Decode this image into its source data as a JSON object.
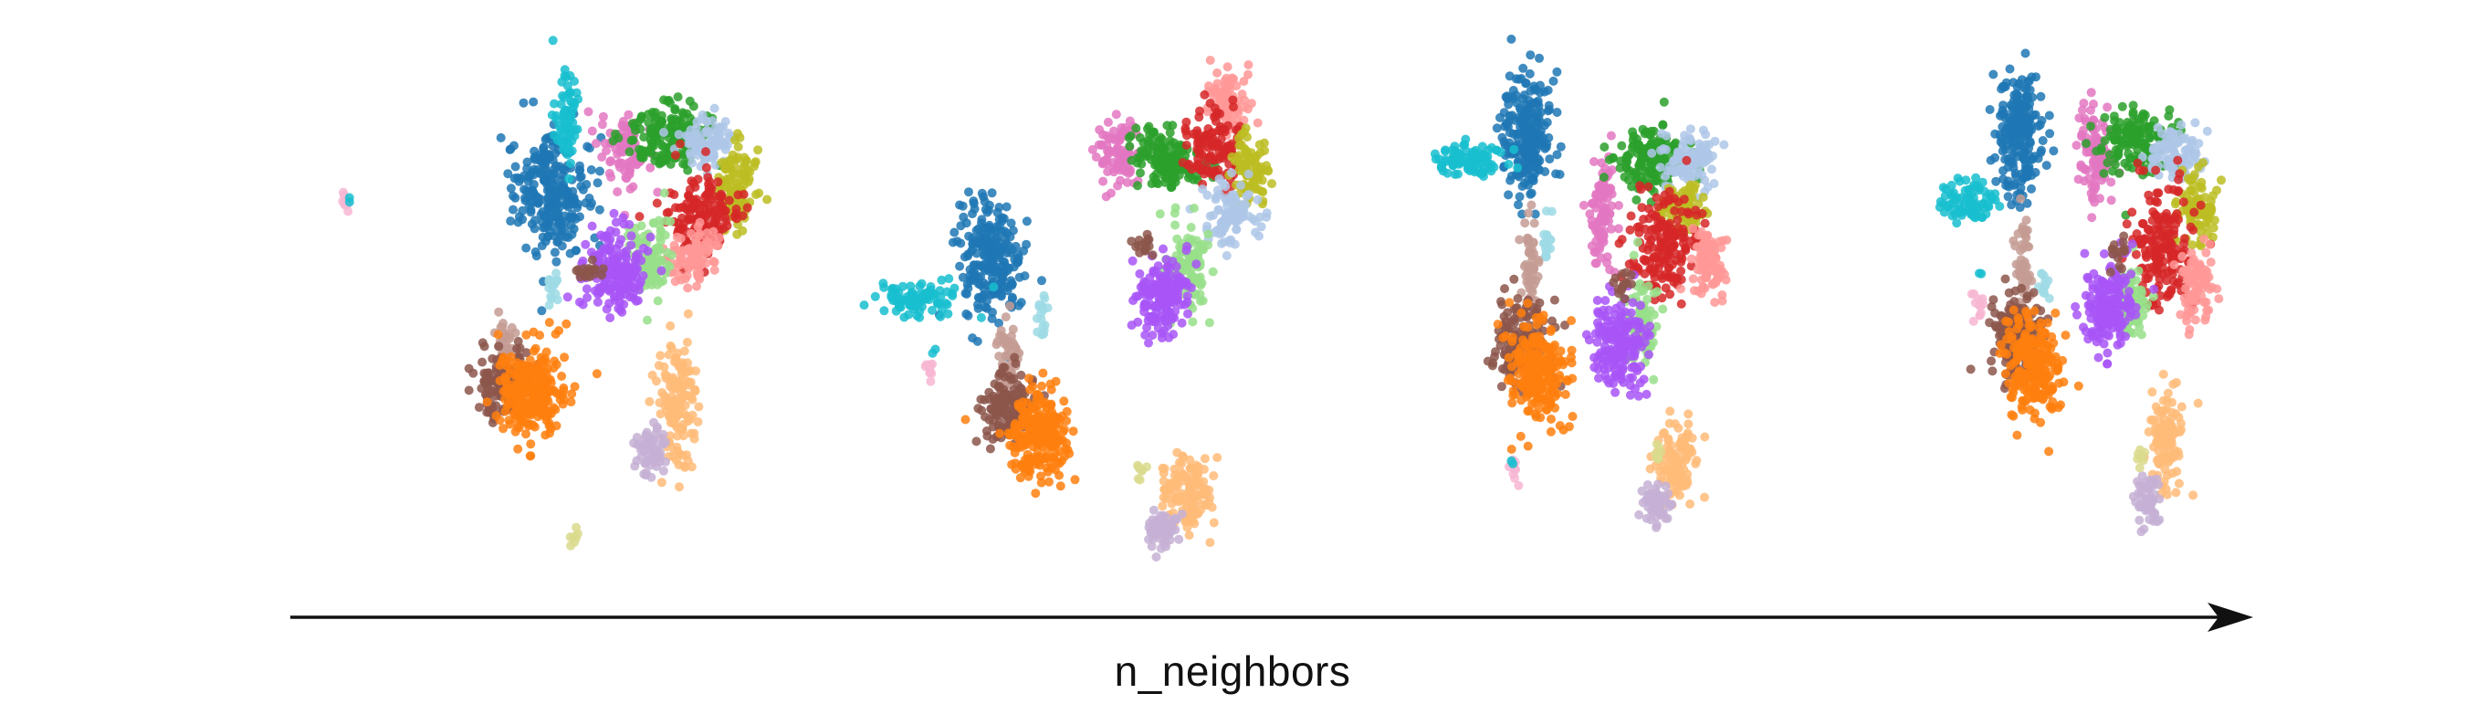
{
  "chart_data": {
    "type": "scatter",
    "title": "",
    "xlabel": "n_neighbors",
    "ylabel": "",
    "grid": false,
    "legend": "none",
    "axis_arrow": "left-to-right",
    "panel_count": 4,
    "panels": [
      {
        "label": "",
        "clusters": [
          {
            "id": "c01",
            "color": "#1f77b4",
            "cx": 0.06,
            "cy": 0.74,
            "sx": 0.055,
            "sy": 0.07,
            "n": 260
          },
          {
            "id": "c02",
            "color": "#17becf",
            "cx": 0.1,
            "cy": 0.92,
            "sx": 0.018,
            "sy": 0.05,
            "n": 70
          },
          {
            "id": "c03",
            "color": "#e377c2",
            "cx": 0.27,
            "cy": 0.84,
            "sx": 0.04,
            "sy": 0.04,
            "n": 90
          },
          {
            "id": "c04",
            "color": "#2ca02c",
            "cx": 0.4,
            "cy": 0.88,
            "sx": 0.06,
            "sy": 0.035,
            "n": 170
          },
          {
            "id": "c05",
            "color": "#aec7e8",
            "cx": 0.52,
            "cy": 0.86,
            "sx": 0.04,
            "sy": 0.03,
            "n": 90
          },
          {
            "id": "c06",
            "color": "#bcbd22",
            "cx": 0.6,
            "cy": 0.76,
            "sx": 0.035,
            "sy": 0.05,
            "n": 110
          },
          {
            "id": "c07",
            "color": "#d62728",
            "cx": 0.5,
            "cy": 0.69,
            "sx": 0.05,
            "sy": 0.05,
            "n": 160
          },
          {
            "id": "c08",
            "color": "#ff9896",
            "cx": 0.48,
            "cy": 0.6,
            "sx": 0.035,
            "sy": 0.03,
            "n": 90
          },
          {
            "id": "c09",
            "color": "#98df8a",
            "cx": 0.35,
            "cy": 0.59,
            "sx": 0.03,
            "sy": 0.045,
            "n": 90
          },
          {
            "id": "c10",
            "color": "#a855f7",
            "cx": 0.24,
            "cy": 0.56,
            "sx": 0.045,
            "sy": 0.05,
            "n": 190
          },
          {
            "id": "c11",
            "color": "#8c564b",
            "cx": 0.17,
            "cy": 0.56,
            "sx": 0.02,
            "sy": 0.015,
            "n": 20
          },
          {
            "id": "c12",
            "color": "#9edae5",
            "cx": 0.06,
            "cy": 0.52,
            "sx": 0.015,
            "sy": 0.02,
            "n": 18
          },
          {
            "id": "c13",
            "color": "#c49c94",
            "cx": -0.08,
            "cy": 0.38,
            "sx": 0.015,
            "sy": 0.035,
            "n": 45
          },
          {
            "id": "c14",
            "color": "#8c564b",
            "cx": -0.08,
            "cy": 0.3,
            "sx": 0.04,
            "sy": 0.035,
            "n": 150
          },
          {
            "id": "c15",
            "color": "#ff7f0e",
            "cx": 0.0,
            "cy": 0.28,
            "sx": 0.05,
            "sy": 0.055,
            "n": 260
          },
          {
            "id": "c16",
            "color": "#ffbb78",
            "cx": 0.43,
            "cy": 0.26,
            "sx": 0.03,
            "sy": 0.07,
            "n": 140
          },
          {
            "id": "c17",
            "color": "#c5b0d5",
            "cx": 0.35,
            "cy": 0.15,
            "sx": 0.025,
            "sy": 0.03,
            "n": 60
          },
          {
            "id": "c18",
            "color": "#f7b6d2",
            "cx": -0.55,
            "cy": 0.72,
            "sx": 0.008,
            "sy": 0.01,
            "n": 10
          },
          {
            "id": "c19",
            "color": "#17becf",
            "cx": -0.54,
            "cy": 0.73,
            "sx": 0.004,
            "sy": 0.004,
            "n": 2
          },
          {
            "id": "c20",
            "color": "#dbdb8d",
            "cx": 0.12,
            "cy": -0.05,
            "sx": 0.008,
            "sy": 0.01,
            "n": 8
          }
        ]
      },
      {
        "label": "",
        "clusters": [
          {
            "id": "c01",
            "color": "#1f77b4",
            "cx": -0.1,
            "cy": 0.58,
            "sx": 0.045,
            "sy": 0.07,
            "n": 230
          },
          {
            "id": "c02",
            "color": "#17becf",
            "cx": -0.32,
            "cy": 0.5,
            "sx": 0.06,
            "sy": 0.02,
            "n": 90
          },
          {
            "id": "c03",
            "color": "#e377c2",
            "cx": 0.28,
            "cy": 0.83,
            "sx": 0.035,
            "sy": 0.04,
            "n": 90
          },
          {
            "id": "c04",
            "color": "#2ca02c",
            "cx": 0.42,
            "cy": 0.82,
            "sx": 0.05,
            "sy": 0.035,
            "n": 150
          },
          {
            "id": "c05",
            "color": "#ff9896",
            "cx": 0.6,
            "cy": 0.96,
            "sx": 0.03,
            "sy": 0.04,
            "n": 90
          },
          {
            "id": "c06",
            "color": "#d62728",
            "cx": 0.56,
            "cy": 0.85,
            "sx": 0.04,
            "sy": 0.04,
            "n": 120
          },
          {
            "id": "c07",
            "color": "#bcbd22",
            "cx": 0.66,
            "cy": 0.79,
            "sx": 0.03,
            "sy": 0.04,
            "n": 90
          },
          {
            "id": "c08",
            "color": "#aec7e8",
            "cx": 0.6,
            "cy": 0.7,
            "sx": 0.04,
            "sy": 0.035,
            "n": 90
          },
          {
            "id": "c09",
            "color": "#98df8a",
            "cx": 0.48,
            "cy": 0.57,
            "sx": 0.03,
            "sy": 0.05,
            "n": 100
          },
          {
            "id": "c10",
            "color": "#a855f7",
            "cx": 0.4,
            "cy": 0.51,
            "sx": 0.04,
            "sy": 0.045,
            "n": 170
          },
          {
            "id": "c11",
            "color": "#8c564b",
            "cx": 0.35,
            "cy": 0.62,
            "sx": 0.015,
            "sy": 0.015,
            "n": 15
          },
          {
            "id": "c12",
            "color": "#9edae5",
            "cx": 0.05,
            "cy": 0.46,
            "sx": 0.01,
            "sy": 0.03,
            "n": 18
          },
          {
            "id": "c13",
            "color": "#c49c94",
            "cx": -0.05,
            "cy": 0.37,
            "sx": 0.015,
            "sy": 0.045,
            "n": 50
          },
          {
            "id": "c14",
            "color": "#8c564b",
            "cx": -0.05,
            "cy": 0.25,
            "sx": 0.04,
            "sy": 0.04,
            "n": 140
          },
          {
            "id": "c15",
            "color": "#ff7f0e",
            "cx": 0.04,
            "cy": 0.18,
            "sx": 0.045,
            "sy": 0.05,
            "n": 220
          },
          {
            "id": "c16",
            "color": "#ffbb78",
            "cx": 0.48,
            "cy": 0.05,
            "sx": 0.035,
            "sy": 0.04,
            "n": 120
          },
          {
            "id": "c17",
            "color": "#c5b0d5",
            "cx": 0.4,
            "cy": -0.04,
            "sx": 0.025,
            "sy": 0.02,
            "n": 60
          },
          {
            "id": "c18",
            "color": "#f7b6d2",
            "cx": -0.28,
            "cy": 0.34,
            "sx": 0.008,
            "sy": 0.015,
            "n": 10
          },
          {
            "id": "c19",
            "color": "#17becf",
            "cx": -0.27,
            "cy": 0.38,
            "sx": 0.004,
            "sy": 0.004,
            "n": 2
          },
          {
            "id": "c20",
            "color": "#dbdb8d",
            "cx": 0.34,
            "cy": 0.1,
            "sx": 0.008,
            "sy": 0.01,
            "n": 8
          }
        ]
      },
      {
        "label": "",
        "clusters": [
          {
            "id": "c01",
            "color": "#1f77b4",
            "cx": 0.0,
            "cy": 0.88,
            "sx": 0.035,
            "sy": 0.07,
            "n": 220
          },
          {
            "id": "c02",
            "color": "#17becf",
            "cx": -0.17,
            "cy": 0.82,
            "sx": 0.055,
            "sy": 0.02,
            "n": 90
          },
          {
            "id": "c03",
            "color": "#e377c2",
            "cx": 0.22,
            "cy": 0.7,
            "sx": 0.02,
            "sy": 0.07,
            "n": 100
          },
          {
            "id": "c04",
            "color": "#2ca02c",
            "cx": 0.36,
            "cy": 0.82,
            "sx": 0.05,
            "sy": 0.035,
            "n": 150
          },
          {
            "id": "c05",
            "color": "#aec7e8",
            "cx": 0.48,
            "cy": 0.82,
            "sx": 0.04,
            "sy": 0.035,
            "n": 100
          },
          {
            "id": "c06",
            "color": "#bcbd22",
            "cx": 0.46,
            "cy": 0.71,
            "sx": 0.035,
            "sy": 0.03,
            "n": 80
          },
          {
            "id": "c07",
            "color": "#d62728",
            "cx": 0.4,
            "cy": 0.62,
            "sx": 0.05,
            "sy": 0.06,
            "n": 170
          },
          {
            "id": "c08",
            "color": "#ff9896",
            "cx": 0.53,
            "cy": 0.59,
            "sx": 0.025,
            "sy": 0.04,
            "n": 90
          },
          {
            "id": "c09",
            "color": "#98df8a",
            "cx": 0.34,
            "cy": 0.44,
            "sx": 0.025,
            "sy": 0.05,
            "n": 90
          },
          {
            "id": "c10",
            "color": "#a855f7",
            "cx": 0.27,
            "cy": 0.4,
            "sx": 0.04,
            "sy": 0.055,
            "n": 180
          },
          {
            "id": "c11",
            "color": "#8c564b",
            "cx": 0.28,
            "cy": 0.53,
            "sx": 0.015,
            "sy": 0.015,
            "n": 15
          },
          {
            "id": "c12",
            "color": "#9edae5",
            "cx": 0.06,
            "cy": 0.62,
            "sx": 0.01,
            "sy": 0.03,
            "n": 18
          },
          {
            "id": "c13",
            "color": "#c49c94",
            "cx": 0.01,
            "cy": 0.58,
            "sx": 0.012,
            "sy": 0.06,
            "n": 55
          },
          {
            "id": "c14",
            "color": "#8c564b",
            "cx": -0.01,
            "cy": 0.4,
            "sx": 0.04,
            "sy": 0.05,
            "n": 150
          },
          {
            "id": "c15",
            "color": "#ff7f0e",
            "cx": 0.03,
            "cy": 0.32,
            "sx": 0.04,
            "sy": 0.06,
            "n": 220
          },
          {
            "id": "c16",
            "color": "#ffbb78",
            "cx": 0.44,
            "cy": 0.12,
            "sx": 0.03,
            "sy": 0.045,
            "n": 110
          },
          {
            "id": "c17",
            "color": "#c5b0d5",
            "cx": 0.38,
            "cy": 0.02,
            "sx": 0.02,
            "sy": 0.025,
            "n": 55
          },
          {
            "id": "c18",
            "color": "#f7b6d2",
            "cx": -0.04,
            "cy": 0.08,
            "sx": 0.006,
            "sy": 0.02,
            "n": 10
          },
          {
            "id": "c19",
            "color": "#17becf",
            "cx": -0.04,
            "cy": 0.12,
            "sx": 0.004,
            "sy": 0.004,
            "n": 2
          },
          {
            "id": "c20",
            "color": "#dbdb8d",
            "cx": 0.39,
            "cy": 0.14,
            "sx": 0.008,
            "sy": 0.015,
            "n": 8
          }
        ]
      },
      {
        "label": "",
        "clusters": [
          {
            "id": "c01",
            "color": "#1f77b4",
            "cx": 0.0,
            "cy": 0.88,
            "sx": 0.035,
            "sy": 0.07,
            "n": 220
          },
          {
            "id": "c02",
            "color": "#17becf",
            "cx": -0.15,
            "cy": 0.72,
            "sx": 0.04,
            "sy": 0.03,
            "n": 80
          },
          {
            "id": "c03",
            "color": "#e377c2",
            "cx": 0.22,
            "cy": 0.84,
            "sx": 0.025,
            "sy": 0.06,
            "n": 100
          },
          {
            "id": "c04",
            "color": "#2ca02c",
            "cx": 0.34,
            "cy": 0.86,
            "sx": 0.05,
            "sy": 0.035,
            "n": 150
          },
          {
            "id": "c05",
            "color": "#aec7e8",
            "cx": 0.46,
            "cy": 0.84,
            "sx": 0.04,
            "sy": 0.03,
            "n": 90
          },
          {
            "id": "c06",
            "color": "#bcbd22",
            "cx": 0.52,
            "cy": 0.7,
            "sx": 0.03,
            "sy": 0.045,
            "n": 90
          },
          {
            "id": "c07",
            "color": "#d62728",
            "cx": 0.42,
            "cy": 0.62,
            "sx": 0.045,
            "sy": 0.07,
            "n": 170
          },
          {
            "id": "c08",
            "color": "#ff9896",
            "cx": 0.52,
            "cy": 0.53,
            "sx": 0.025,
            "sy": 0.045,
            "n": 90
          },
          {
            "id": "c09",
            "color": "#98df8a",
            "cx": 0.33,
            "cy": 0.49,
            "sx": 0.025,
            "sy": 0.05,
            "n": 90
          },
          {
            "id": "c10",
            "color": "#a855f7",
            "cx": 0.26,
            "cy": 0.48,
            "sx": 0.035,
            "sy": 0.05,
            "n": 170
          },
          {
            "id": "c11",
            "color": "#8c564b",
            "cx": 0.29,
            "cy": 0.6,
            "sx": 0.015,
            "sy": 0.015,
            "n": 15
          },
          {
            "id": "c12",
            "color": "#9edae5",
            "cx": 0.07,
            "cy": 0.52,
            "sx": 0.01,
            "sy": 0.02,
            "n": 12
          },
          {
            "id": "c13",
            "color": "#c49c94",
            "cx": 0.01,
            "cy": 0.58,
            "sx": 0.012,
            "sy": 0.06,
            "n": 55
          },
          {
            "id": "c14",
            "color": "#8c564b",
            "cx": -0.01,
            "cy": 0.42,
            "sx": 0.04,
            "sy": 0.05,
            "n": 150
          },
          {
            "id": "c15",
            "color": "#ff7f0e",
            "cx": 0.04,
            "cy": 0.33,
            "sx": 0.04,
            "sy": 0.06,
            "n": 220
          },
          {
            "id": "c16",
            "color": "#ffbb78",
            "cx": 0.43,
            "cy": 0.18,
            "sx": 0.025,
            "sy": 0.06,
            "n": 110
          },
          {
            "id": "c17",
            "color": "#c5b0d5",
            "cx": 0.38,
            "cy": 0.03,
            "sx": 0.02,
            "sy": 0.03,
            "n": 55
          },
          {
            "id": "c18",
            "color": "#f7b6d2",
            "cx": -0.12,
            "cy": 0.48,
            "sx": 0.01,
            "sy": 0.02,
            "n": 12
          },
          {
            "id": "c19",
            "color": "#17becf",
            "cx": -0.12,
            "cy": 0.56,
            "sx": 0.004,
            "sy": 0.004,
            "n": 2
          },
          {
            "id": "c20",
            "color": "#dbdb8d",
            "cx": 0.36,
            "cy": 0.13,
            "sx": 0.008,
            "sy": 0.015,
            "n": 8
          }
        ]
      }
    ]
  }
}
